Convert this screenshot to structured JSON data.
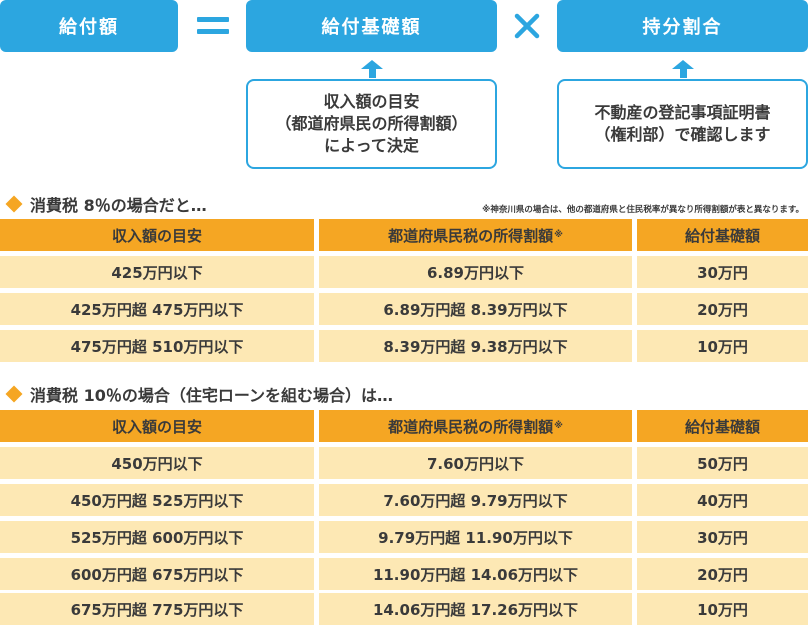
{
  "formula": {
    "benefit_amount": "給付額",
    "equals": "＝",
    "base_amount": "給付基礎額",
    "times": "×",
    "share_ratio": "持分割合"
  },
  "notes": {
    "base_line1": "収入額の目安",
    "base_line2": "（都道府県民の所得割額）",
    "base_line3": "によって決定",
    "share_line1": "不動産の登記事項証明書",
    "share_line2": "（権利部）で確認します"
  },
  "section1": {
    "title": "消費税 8％の場合だと…",
    "footnote": "※神奈川県の場合は、他の都道府県と住民税率が異なり所得割額が表と異なります。",
    "headers": [
      "収入額の目安",
      "都道府県民税の所得割額",
      "給付基礎額"
    ],
    "header_mark": "※",
    "rows": [
      [
        "425万円以下",
        "6.89万円以下",
        "30万円"
      ],
      [
        "425万円超 475万円以下",
        "6.89万円超 8.39万円以下",
        "20万円"
      ],
      [
        "475万円超 510万円以下",
        "8.39万円超 9.38万円以下",
        "10万円"
      ]
    ]
  },
  "section2": {
    "title": "消費税 10％の場合（住宅ローンを組む場合）は…",
    "headers": [
      "収入額の目安",
      "都道府県民税の所得割額",
      "給付基礎額"
    ],
    "header_mark": "※",
    "rows": [
      [
        "450万円以下",
        "7.60万円以下",
        "50万円"
      ],
      [
        "450万円超 525万円以下",
        "7.60万円超 9.79万円以下",
        "40万円"
      ],
      [
        "525万円超 600万円以下",
        "9.79万円超 11.90万円以下",
        "30万円"
      ],
      [
        "600万円超 675万円以下",
        "11.90万円超 14.06万円以下",
        "20万円"
      ],
      [
        "675万円超 775万円以下",
        "14.06万円超 17.26万円以下",
        "10万円"
      ]
    ]
  },
  "colors": {
    "accent_blue": "#2ca6e0",
    "header_orange": "#f5a623",
    "row_cream": "#fde8b4"
  }
}
